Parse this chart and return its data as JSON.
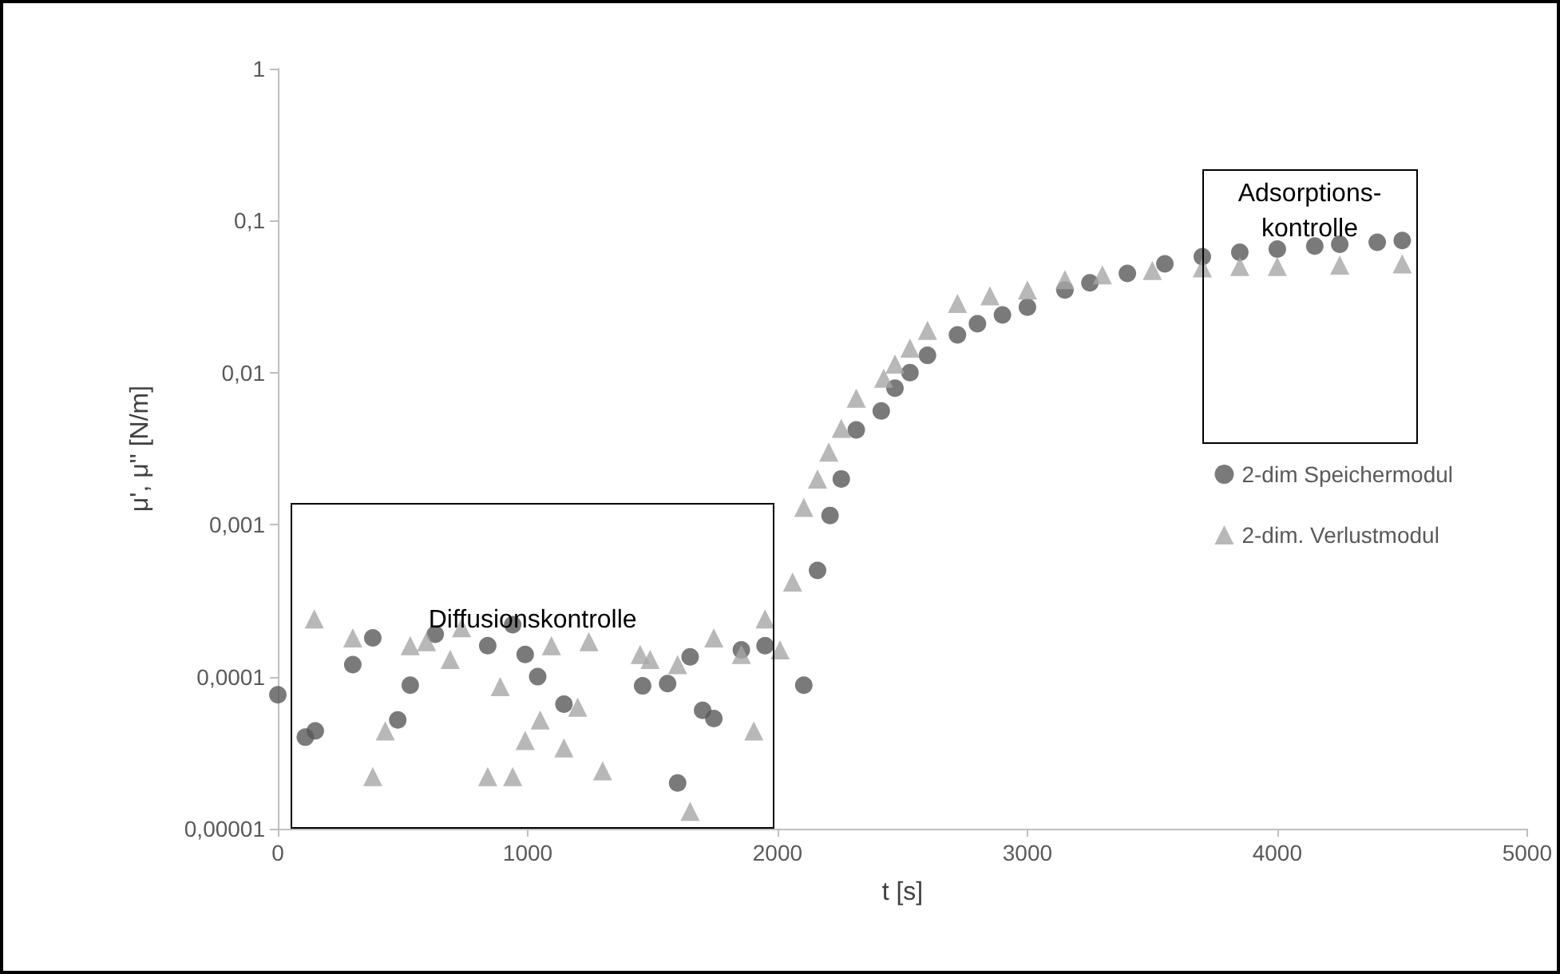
{
  "chart_data": {
    "type": "scatter",
    "xlabel": "t [s]",
    "ylabel": "μ', μ'' [N/m]",
    "log": "y",
    "grid": false,
    "legend": "right",
    "xlim": [
      0,
      5000
    ],
    "xticks": [
      0,
      1000,
      2000,
      3000,
      4000,
      5000
    ],
    "ylim": [
      1e-05,
      1
    ],
    "yticks": [
      {
        "value": 1e-05,
        "label": "0,00001"
      },
      {
        "value": 0.0001,
        "label": "0,0001"
      },
      {
        "value": 0.001,
        "label": "0,001"
      },
      {
        "value": 0.01,
        "label": "0,01"
      },
      {
        "value": 0.1,
        "label": "0,1"
      },
      {
        "value": 1,
        "label": "1"
      }
    ],
    "annotations": [
      "Diffusionskontrolle",
      "Adsorptions-kontrolle"
    ],
    "series": [
      {
        "name": "2-dim Speichermodul",
        "color": "#595959",
        "marker": "circle",
        "x": [
          0,
          110,
          150,
          300,
          380,
          480,
          530,
          630,
          840,
          940,
          990,
          1040,
          1145,
          1460,
          1560,
          1600,
          1650,
          1700,
          1745,
          1855,
          1950,
          2105,
          2160,
          2210,
          2255,
          2315,
          2415,
          2470,
          2530,
          2600,
          2720,
          2800,
          2900,
          3000,
          3150,
          3250,
          3400,
          3550,
          3700,
          3850,
          4000,
          4150,
          4250,
          4400,
          4500
        ],
        "values": [
          7.6e-05,
          4e-05,
          4.4e-05,
          0.00012,
          0.00018,
          5.2e-05,
          8.8e-05,
          0.00019,
          0.00016,
          0.00022,
          0.00014,
          0.0001,
          6.6e-05,
          8.7e-05,
          9e-05,
          2e-05,
          0.000135,
          6e-05,
          5.3e-05,
          0.00015,
          0.00016,
          8.8e-05,
          0.0005,
          0.00115,
          0.002,
          0.0042,
          0.0056,
          0.0079,
          0.01,
          0.013,
          0.0177,
          0.021,
          0.024,
          0.027,
          0.035,
          0.039,
          0.045,
          0.052,
          0.058,
          0.062,
          0.065,
          0.068,
          0.07,
          0.072,
          0.074
        ]
      },
      {
        "name": "2-dim. Verlustmodul",
        "color": "#a6a6a6",
        "marker": "triangle",
        "x": [
          146,
          300,
          380,
          430,
          530,
          595,
          690,
          735,
          840,
          890,
          940,
          990,
          1050,
          1095,
          1145,
          1200,
          1245,
          1300,
          1450,
          1490,
          1600,
          1650,
          1745,
          1855,
          1905,
          1950,
          2010,
          2060,
          2105,
          2160,
          2205,
          2255,
          2315,
          2425,
          2470,
          2530,
          2600,
          2720,
          2850,
          3000,
          3150,
          3300,
          3500,
          3700,
          3850,
          4000,
          4250,
          4500
        ],
        "values": [
          0.00024,
          0.00018,
          2.2e-05,
          4.4e-05,
          0.00016,
          0.00017,
          0.00013,
          0.00021,
          2.2e-05,
          8.6e-05,
          2.2e-05,
          3.8e-05,
          5.2e-05,
          0.00016,
          3.4e-05,
          6.3e-05,
          0.00017,
          2.4e-05,
          0.00014,
          0.00013,
          0.00012,
          1.3e-05,
          0.00018,
          0.00014,
          4.4e-05,
          0.00024,
          0.00015,
          0.00042,
          0.0013,
          0.002,
          0.003,
          0.0043,
          0.0068,
          0.0092,
          0.0114,
          0.0145,
          0.019,
          0.0286,
          0.032,
          0.035,
          0.041,
          0.044,
          0.047,
          0.049,
          0.05,
          0.05,
          0.051,
          0.052
        ]
      }
    ]
  }
}
